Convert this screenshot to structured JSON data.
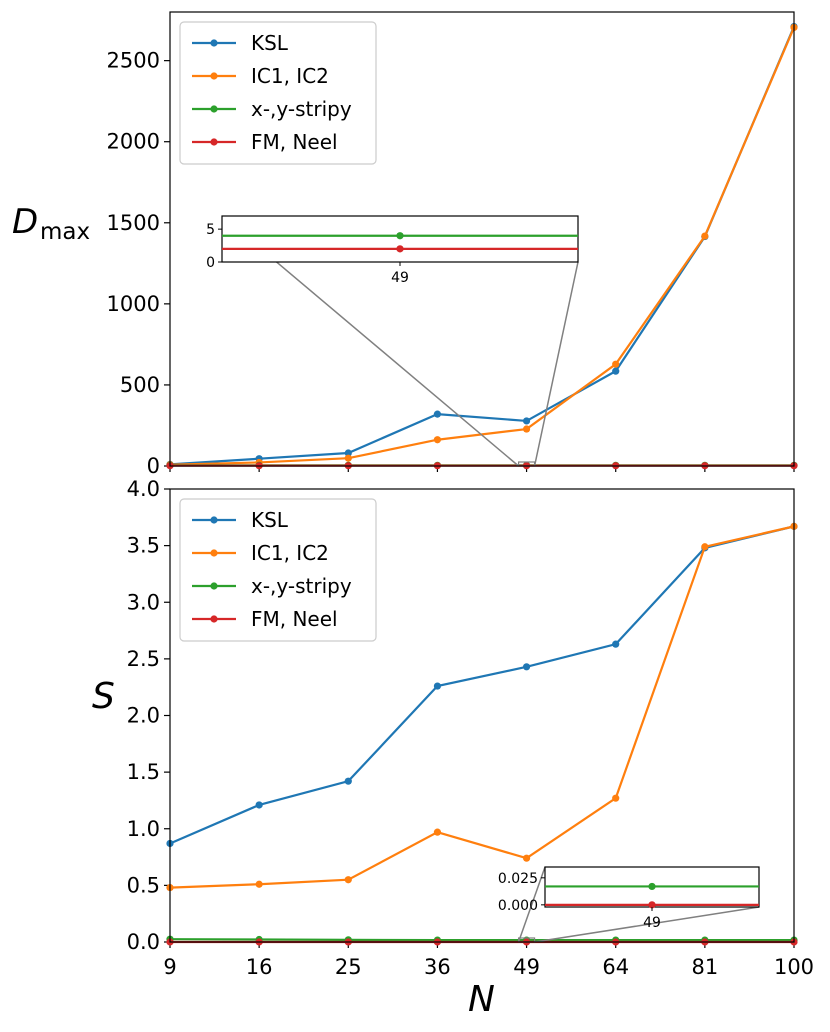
{
  "chart_data": [
    {
      "type": "line",
      "panel": "top",
      "ylabel": "D",
      "ylabel_sub": "max",
      "ylim": [
        0,
        2800
      ],
      "yticks": [
        0,
        500,
        1000,
        1500,
        2000,
        2500
      ],
      "categories": [
        "9",
        "16",
        "25",
        "36",
        "49",
        "64",
        "81",
        "100"
      ],
      "legend_position": "upper-left",
      "series": [
        {
          "name": "KSL",
          "color": "#1f77b4",
          "values": [
            10,
            45,
            80,
            320,
            278,
            585,
            1415,
            2710
          ]
        },
        {
          "name": "IC1, IC2",
          "color": "#ff7f0e",
          "values": [
            8,
            22,
            48,
            162,
            228,
            628,
            1418,
            2705
          ]
        },
        {
          "name": "x-,y-stripy",
          "color": "#2ca02c",
          "values": [
            4,
            4,
            4,
            4,
            4,
            4,
            4,
            4
          ]
        },
        {
          "name": "FM, Neel",
          "color": "#d62728",
          "values": [
            2,
            2,
            2,
            2,
            2,
            2,
            2,
            2
          ]
        }
      ],
      "inset": {
        "category": "49",
        "ylim": [
          0,
          7
        ],
        "yticks": [
          0,
          5
        ],
        "series_values": {
          "x-,y-stripy": 4,
          "FM, Neel": 2
        }
      }
    },
    {
      "type": "line",
      "panel": "bottom",
      "ylabel": "S",
      "xlabel": "N",
      "ylim": [
        0,
        4.0
      ],
      "yticks": [
        "0.0",
        "0.5",
        "1.0",
        "1.5",
        "2.0",
        "2.5",
        "3.0",
        "3.5",
        "4.0"
      ],
      "categories": [
        "9",
        "16",
        "25",
        "36",
        "49",
        "64",
        "81",
        "100"
      ],
      "legend_position": "upper-left",
      "series": [
        {
          "name": "KSL",
          "color": "#1f77b4",
          "values": [
            0.87,
            1.21,
            1.42,
            2.26,
            2.43,
            2.63,
            3.48,
            3.67
          ]
        },
        {
          "name": "IC1, IC2",
          "color": "#ff7f0e",
          "values": [
            0.48,
            0.51,
            0.55,
            0.97,
            0.74,
            1.27,
            3.49,
            3.67
          ]
        },
        {
          "name": "x-,y-stripy",
          "color": "#2ca02c",
          "values": [
            0.025,
            0.022,
            0.019,
            0.017,
            0.017,
            0.017,
            0.017,
            0.017
          ]
        },
        {
          "name": "FM, Neel",
          "color": "#d62728",
          "values": [
            0.0,
            0.0,
            0.0,
            0.0,
            0.0,
            0.0,
            0.0,
            0.0
          ]
        }
      ],
      "inset": {
        "category": "49",
        "ylim": [
          -0.002,
          0.035
        ],
        "yticks": [
          "0.000",
          "0.025"
        ],
        "series_values": {
          "x-,y-stripy": 0.017,
          "FM, Neel": 0.0
        }
      }
    }
  ]
}
